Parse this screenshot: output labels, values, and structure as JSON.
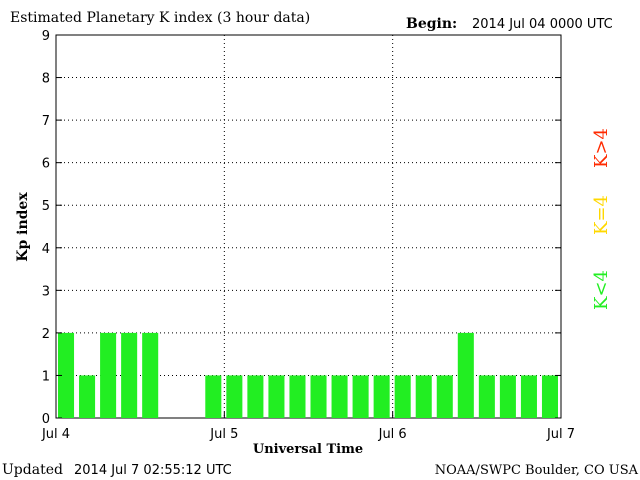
{
  "header": {
    "title": "Estimated Planetary K index (3 hour data)",
    "begin_label": "Begin:",
    "begin_value": "2014 Jul 04 0000 UTC"
  },
  "footer": {
    "updated_label": "Updated",
    "updated_value": "2014 Jul  7 02:55:12 UTC",
    "source": "NOAA/SWPC Boulder, CO USA"
  },
  "legend": [
    {
      "label": "K>4",
      "color": "#ff2a00"
    },
    {
      "label": "K=4",
      "color": "#ffd800"
    },
    {
      "label": "K<4",
      "color": "#22ee22"
    }
  ],
  "chart_data": {
    "type": "bar",
    "xlabel": "Universal Time",
    "ylabel": "Kp index",
    "ylim": [
      0,
      9
    ],
    "yticks": [
      "0",
      "1",
      "2",
      "3",
      "4",
      "5",
      "6",
      "7",
      "8",
      "9"
    ],
    "xticks": [
      "Jul 4",
      "Jul 5",
      "Jul 6",
      "Jul 7"
    ],
    "grid": true,
    "bar_color": "#22ee22",
    "values": [
      2,
      1,
      2,
      2,
      2,
      null,
      null,
      1,
      1,
      1,
      1,
      1,
      1,
      1,
      1,
      1,
      1,
      1,
      1,
      2,
      1,
      1,
      1,
      1
    ]
  }
}
